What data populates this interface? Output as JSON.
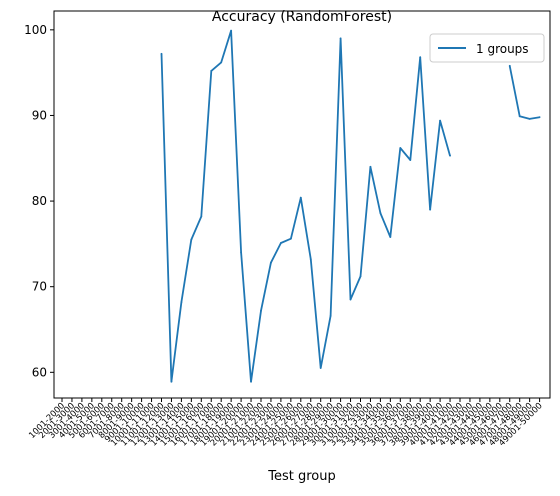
{
  "chart_data": {
    "type": "line",
    "title": "Accuracy (RandomForest)",
    "xlabel": "Test group",
    "ylabel": "",
    "ylim": [
      57,
      102.2
    ],
    "yticks": [
      60,
      70,
      80,
      90,
      100
    ],
    "categories": [
      "1001-2000",
      "2001-3000",
      "3001-4000",
      "4001-5000",
      "5001-6000",
      "6001-7000",
      "7001-8000",
      "8001-9000",
      "9001-10000",
      "10001-11000",
      "11001-12000",
      "12001-13000",
      "13001-14000",
      "14001-15000",
      "15001-16000",
      "16001-17000",
      "17001-18000",
      "18001-19000",
      "19001-20000",
      "20001-21000",
      "21001-22000",
      "22001-23000",
      "23001-24000",
      "24001-25000",
      "25001-26000",
      "26001-27000",
      "27001-28000",
      "28001-29000",
      "29001-30000",
      "30001-31000",
      "31001-32000",
      "32001-33000",
      "33001-34000",
      "34001-35000",
      "35001-36000",
      "36001-37000",
      "37001-38000",
      "38001-39000",
      "39001-40000",
      "40001-41000",
      "41001-42000",
      "42001-43000",
      "43001-44000",
      "44001-45000",
      "45001-46000",
      "46001-47000",
      "47001-48000",
      "48001-49000",
      "49001-50000"
    ],
    "series": [
      {
        "name": "1 groups",
        "color": "#1f77b4",
        "values": [
          null,
          null,
          null,
          null,
          null,
          null,
          null,
          null,
          null,
          null,
          97.2,
          58.9,
          68.2,
          75.5,
          78.2,
          95.2,
          96.2,
          99.9,
          74.0,
          58.9,
          67.2,
          72.8,
          75.1,
          75.6,
          80.4,
          73.2,
          60.5,
          66.6,
          99.0,
          68.5,
          71.2,
          84.0,
          78.6,
          75.8,
          86.2,
          84.8,
          96.8,
          79.0,
          89.4,
          85.3,
          null,
          null,
          null,
          null,
          null,
          95.8,
          89.9,
          89.6,
          89.8
        ]
      }
    ],
    "grid": false,
    "legend": {
      "position": "top-right"
    }
  }
}
